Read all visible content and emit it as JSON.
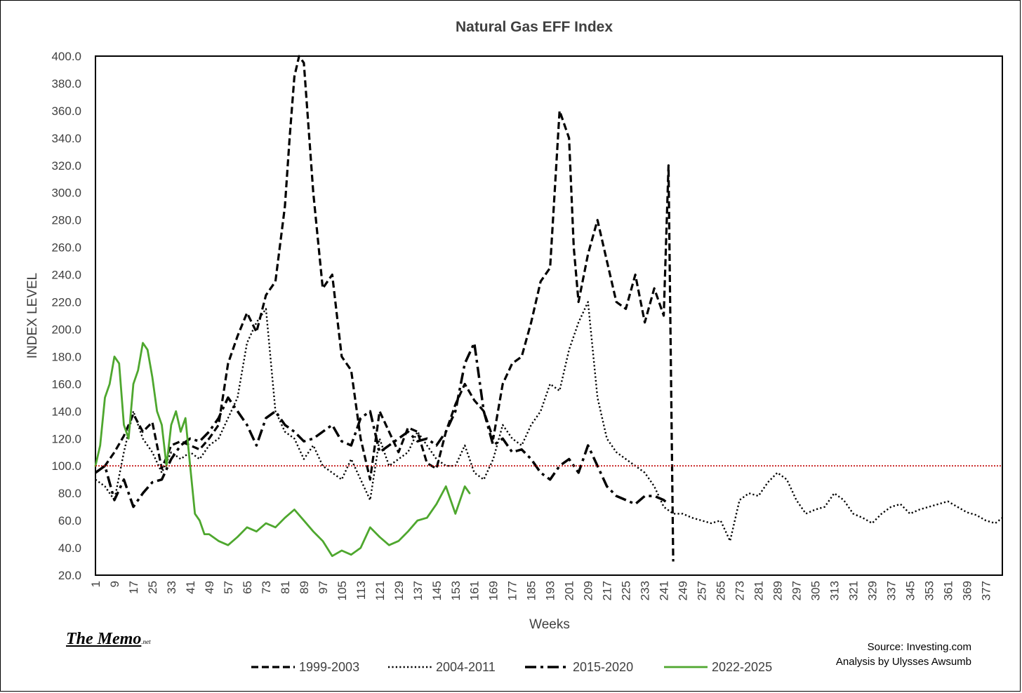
{
  "logo": {
    "main": "The Memo",
    "suffix": ".net"
  },
  "source": {
    "line1": "Source: Investing.com",
    "line2": "Analysis by Ulysses Awsumb"
  },
  "chart_data": {
    "type": "line",
    "title": "Natural Gas EFF Index",
    "xlabel": "Weeks",
    "ylabel": "INDEX LEVEL",
    "xlim": [
      1,
      384
    ],
    "ylim": [
      20,
      400
    ],
    "ytick_step": 20,
    "xtick_start": 1,
    "xtick_step": 8,
    "grid": false,
    "legend_position": "bottom",
    "reference_line": {
      "value": 100,
      "color": "#c00000",
      "style": "dotted"
    },
    "series": [
      {
        "name": "1999-2003",
        "style": "long-dash",
        "color": "#000000",
        "x": [
          1,
          5,
          9,
          13,
          17,
          21,
          25,
          29,
          33,
          37,
          41,
          45,
          49,
          53,
          57,
          61,
          65,
          69,
          73,
          77,
          81,
          83,
          85,
          87,
          89,
          93,
          97,
          101,
          105,
          109,
          113,
          117,
          121,
          125,
          129,
          133,
          137,
          141,
          145,
          149,
          153,
          157,
          161,
          165,
          169,
          173,
          177,
          181,
          185,
          189,
          193,
          197,
          201,
          203,
          205,
          209,
          213,
          217,
          221,
          225,
          229,
          233,
          237,
          241,
          243,
          245
        ],
        "y": [
          95,
          100,
          110,
          122,
          138,
          125,
          132,
          98,
          115,
          118,
          115,
          112,
          120,
          130,
          175,
          195,
          212,
          198,
          225,
          235,
          290,
          340,
          385,
          400,
          395,
          300,
          230,
          240,
          180,
          170,
          120,
          90,
          140,
          125,
          110,
          128,
          125,
          102,
          98,
          125,
          145,
          160,
          148,
          140,
          120,
          160,
          175,
          180,
          205,
          235,
          245,
          360,
          340,
          260,
          220,
          255,
          280,
          250,
          220,
          215,
          240,
          205,
          230,
          210,
          320,
          30
        ]
      },
      {
        "name": "2004-2011",
        "style": "dotted",
        "color": "#000000",
        "x": [
          1,
          5,
          9,
          13,
          17,
          21,
          25,
          29,
          33,
          37,
          41,
          45,
          49,
          53,
          57,
          61,
          65,
          69,
          73,
          77,
          81,
          85,
          89,
          93,
          97,
          101,
          105,
          109,
          113,
          117,
          121,
          125,
          129,
          133,
          137,
          141,
          145,
          149,
          153,
          157,
          161,
          165,
          169,
          173,
          177,
          181,
          185,
          189,
          193,
          197,
          201,
          205,
          209,
          213,
          217,
          221,
          225,
          229,
          233,
          237,
          241,
          245,
          249,
          253,
          257,
          261,
          265,
          269,
          273,
          277,
          281,
          285,
          289,
          293,
          297,
          301,
          305,
          309,
          313,
          317,
          321,
          325,
          329,
          333,
          337,
          341,
          345,
          349,
          353,
          357,
          361,
          365,
          369,
          373,
          377,
          381,
          384
        ],
        "y": [
          90,
          85,
          75,
          110,
          140,
          120,
          110,
          95,
          110,
          105,
          110,
          105,
          115,
          120,
          135,
          150,
          190,
          205,
          215,
          140,
          125,
          120,
          105,
          115,
          100,
          95,
          90,
          105,
          90,
          75,
          120,
          100,
          105,
          110,
          125,
          115,
          105,
          100,
          100,
          115,
          95,
          90,
          105,
          130,
          120,
          115,
          130,
          140,
          160,
          155,
          185,
          205,
          220,
          150,
          120,
          110,
          105,
          100,
          95,
          85,
          70,
          65,
          65,
          62,
          60,
          58,
          60,
          45,
          75,
          80,
          78,
          88,
          95,
          90,
          75,
          65,
          68,
          70,
          80,
          75,
          65,
          62,
          58,
          65,
          70,
          72,
          65,
          68,
          70,
          72,
          74,
          70,
          66,
          64,
          60,
          58,
          62
        ]
      },
      {
        "name": "2015-2020",
        "style": "dash-dot",
        "color": "#000000",
        "x": [
          1,
          5,
          9,
          13,
          17,
          21,
          25,
          29,
          33,
          37,
          41,
          45,
          49,
          53,
          57,
          61,
          65,
          69,
          73,
          77,
          81,
          85,
          89,
          93,
          97,
          101,
          105,
          109,
          113,
          117,
          121,
          125,
          129,
          133,
          137,
          141,
          145,
          149,
          153,
          157,
          161,
          165,
          169,
          173,
          177,
          181,
          185,
          189,
          193,
          197,
          201,
          205,
          209,
          213,
          217,
          221,
          225,
          229,
          233,
          237,
          241,
          243
        ],
        "y": [
          95,
          100,
          75,
          90,
          70,
          80,
          88,
          90,
          105,
          115,
          120,
          118,
          125,
          135,
          150,
          140,
          130,
          115,
          135,
          140,
          130,
          125,
          118,
          120,
          125,
          130,
          118,
          115,
          135,
          140,
          110,
          115,
          120,
          125,
          118,
          120,
          115,
          125,
          140,
          175,
          190,
          140,
          115,
          120,
          110,
          112,
          105,
          95,
          90,
          100,
          105,
          95,
          115,
          100,
          85,
          78,
          75,
          72,
          78,
          78,
          75,
          72
        ]
      },
      {
        "name": "2022-2025",
        "style": "solid",
        "color": "#4ea72e",
        "x": [
          1,
          3,
          5,
          7,
          9,
          11,
          13,
          15,
          17,
          19,
          21,
          23,
          25,
          27,
          29,
          31,
          33,
          35,
          37,
          39,
          41,
          43,
          45,
          47,
          49,
          53,
          57,
          61,
          65,
          69,
          73,
          77,
          81,
          85,
          89,
          93,
          97,
          101,
          105,
          109,
          113,
          117,
          121,
          125,
          129,
          133,
          137,
          141,
          145,
          149,
          153,
          157,
          159
        ],
        "y": [
          100,
          115,
          150,
          160,
          180,
          175,
          130,
          120,
          160,
          170,
          190,
          185,
          165,
          140,
          130,
          100,
          130,
          140,
          125,
          135,
          100,
          65,
          60,
          50,
          50,
          45,
          42,
          48,
          55,
          52,
          58,
          55,
          62,
          68,
          60,
          52,
          45,
          34,
          38,
          35,
          40,
          55,
          48,
          42,
          45,
          52,
          60,
          62,
          72,
          85,
          65,
          85,
          80
        ]
      }
    ]
  }
}
